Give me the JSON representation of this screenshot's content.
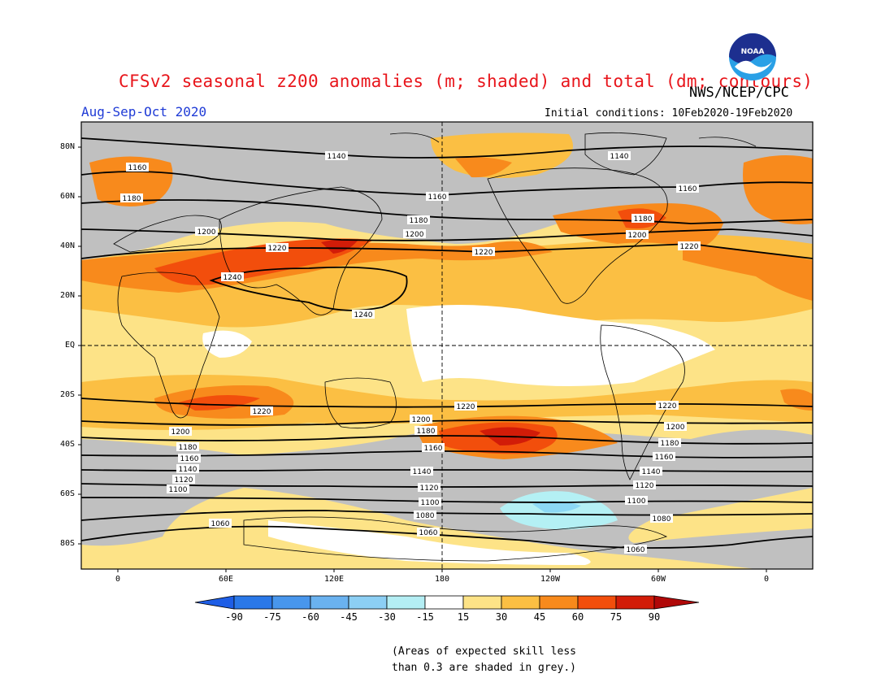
{
  "header": {
    "title": "CFSv2 seasonal z200 anomalies (m; shaded) and total (dm; contours)",
    "agency": "NWS/NCEP/CPC",
    "season": "Aug-Sep-Oct 2020",
    "initial_conditions": "Initial conditions: 10Feb2020-19Feb2020",
    "logo_text": "NOAA"
  },
  "map": {
    "lat_labels": [
      "80N",
      "60N",
      "40N",
      "20N",
      "EQ",
      "20S",
      "40S",
      "60S",
      "80S"
    ],
    "lon_labels": [
      "0",
      "60E",
      "120E",
      "180",
      "120W",
      "60W",
      "0"
    ],
    "contour_labels": {
      "c1140a": "1140",
      "c1140b": "1140",
      "c1160a": "1160",
      "c1160b": "1160",
      "c1160c": "1160",
      "c1180a": "1180",
      "c1180b": "1180",
      "c1180c": "1180",
      "c1200a": "1200",
      "c1200b": "1200",
      "c1200c": "1200",
      "c1220a": "1220",
      "c1220b": "1220",
      "c1220c": "1220",
      "c1240a": "1240",
      "c1240b": "1240",
      "s1220a": "1220",
      "s1220b": "1220",
      "s1220c": "1220",
      "s1200a": "1200",
      "s1200b": "1200",
      "s1200c": "1200",
      "s1180a": "1180",
      "s1180b": "1180",
      "s1180c": "1180",
      "s1160a": "1160",
      "s1160b": "1160",
      "s1160c": "1160",
      "s1140a": "1140",
      "s1140b": "1140",
      "s1140c": "1140",
      "s1120a": "1120",
      "s1120b": "1120",
      "s1120c": "1120",
      "s1100a": "1100",
      "s1100b": "1100",
      "s1100c": "1100",
      "s1080a": "1080",
      "s1080b": "1080",
      "s1060a": "1060",
      "s1060b": "1060",
      "s1060c": "1060"
    },
    "colors": {
      "grey_low_skill": "#c0c0c0",
      "c15_30": "#fde387",
      "c30_45": "#fbbf43",
      "c45_60": "#f88a1c",
      "c60_75": "#f24e0c",
      "c75_90": "#d21c08",
      "neg_15_30": "#b4f0f4",
      "neg_30_45": "#8cd8f4"
    }
  },
  "colorbar": {
    "labels": [
      "-90",
      "-75",
      "-60",
      "-45",
      "-30",
      "-15",
      "15",
      "30",
      "45",
      "60",
      "75",
      "90"
    ],
    "colors": [
      "#1e5ee6",
      "#2a78e8",
      "#4896ec",
      "#6ab2f0",
      "#8ccff4",
      "#b4eef4",
      "#ffffff",
      "#fde387",
      "#fbbf43",
      "#f88a1c",
      "#f24e0c",
      "#d21c08",
      "#b00808"
    ]
  },
  "note": {
    "line1": "(Areas of expected skill less",
    "line2": "than 0.3 are shaded in grey.)"
  }
}
